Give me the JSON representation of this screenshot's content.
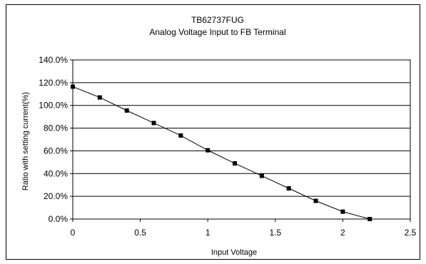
{
  "chart_data": {
    "type": "line",
    "title": "TB62737FUG",
    "subtitle": "Analog Voltage Input to FB Terminal",
    "xlabel": "Input Voltage",
    "ylabel": "Ratio with setting current(%)",
    "xlim": [
      0,
      2.5
    ],
    "ylim": [
      0,
      140
    ],
    "x_ticks": [
      "0",
      "0.5",
      "1",
      "1.5",
      "2",
      "2.5"
    ],
    "y_ticks": [
      "0.0%",
      "20.0%",
      "40.0%",
      "60.0%",
      "80.0%",
      "100.0%",
      "120.0%",
      "140.0%"
    ],
    "grid": "horizontal",
    "colors": {
      "line": "#000000",
      "marker": "#000000",
      "grid": "#000000"
    },
    "series": [
      {
        "x": [
          0,
          0.2,
          0.4,
          0.6,
          0.8,
          1.0,
          1.2,
          1.4,
          1.6,
          1.8,
          2.0,
          2.2
        ],
        "y": [
          116.5,
          107,
          95.5,
          84.5,
          73.5,
          60.5,
          49,
          38,
          27,
          16,
          6.5,
          0
        ]
      }
    ]
  }
}
